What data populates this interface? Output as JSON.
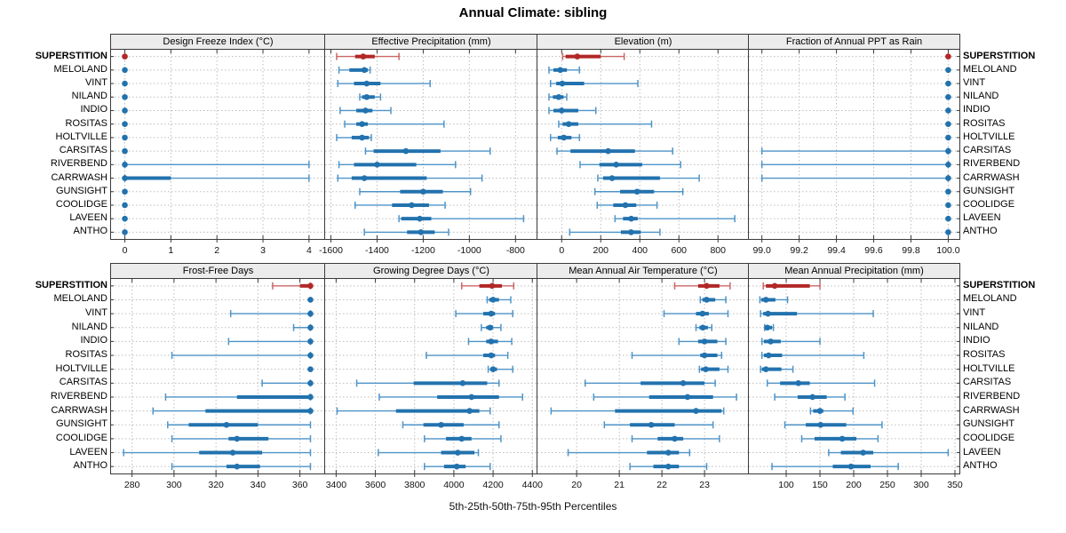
{
  "title": "Annual Climate: sibling",
  "caption": "5th-25th-50th-75th-95th Percentiles",
  "highlight_site": "SUPERSTITION",
  "colors": {
    "normal": "#2272ae",
    "normal_light": "#4e94c8",
    "highlight": "#b22727",
    "highlight_light": "#cc6666",
    "strip_bg": "#ececec",
    "grid": "#bdbdbd",
    "border": "#3a3a3a",
    "tick_text": "#111111"
  },
  "chart_data": {
    "type": "dotplot-percentiles",
    "percentiles": [
      5,
      25,
      50,
      75,
      95
    ],
    "legend_note": "each row shows 5th-25th-50th-75th-95th percentile whisker, box and median dot",
    "categories": [
      "SUPERSTITION",
      "MELOLAND",
      "VINT",
      "NILAND",
      "INDIO",
      "ROSITAS",
      "HOLTVILLE",
      "CARSITAS",
      "RIVERBEND",
      "CARRWASH",
      "GUNSIGHT",
      "COOLIDGE",
      "LAVEEN",
      "ANTHO"
    ],
    "panels": [
      {
        "title": "Design Freeze Index (°C)",
        "row": 0,
        "col": 0,
        "xlim": [
          -0.3,
          4.35
        ],
        "ticks": [
          0,
          1,
          2,
          3,
          4
        ],
        "tick_labels": [
          "0",
          "1",
          "2",
          "3",
          "4"
        ],
        "series": [
          [
            0,
            0,
            0,
            0,
            0
          ],
          [
            0,
            0,
            0,
            0,
            0
          ],
          [
            0,
            0,
            0,
            0,
            0
          ],
          [
            0,
            0,
            0,
            0,
            0
          ],
          [
            0,
            0,
            0,
            0,
            0
          ],
          [
            0,
            0,
            0,
            0,
            0
          ],
          [
            0,
            0,
            0,
            0,
            0
          ],
          [
            0,
            0,
            0,
            0,
            0
          ],
          [
            0,
            0,
            0,
            0,
            4
          ],
          [
            0,
            0,
            0,
            1,
            4
          ],
          [
            0,
            0,
            0,
            0,
            0
          ],
          [
            0,
            0,
            0,
            0,
            0
          ],
          [
            0,
            0,
            0,
            0,
            0
          ],
          [
            0,
            0,
            0,
            0,
            0
          ]
        ]
      },
      {
        "title": "Effective Precipitation (mm)",
        "row": 0,
        "col": 1,
        "xlim": [
          -1625,
          -705
        ],
        "ticks": [
          -1600,
          -1400,
          -1200,
          -1000,
          -800
        ],
        "tick_labels": [
          "-1600",
          "-1400",
          "-1200",
          "-1000",
          "-800"
        ],
        "series": [
          [
            -1575,
            -1495,
            -1460,
            -1410,
            -1305
          ],
          [
            -1565,
            -1520,
            -1455,
            -1440,
            -1430
          ],
          [
            -1570,
            -1500,
            -1445,
            -1385,
            -1170
          ],
          [
            -1475,
            -1465,
            -1445,
            -1410,
            -1385
          ],
          [
            -1560,
            -1490,
            -1450,
            -1420,
            -1340
          ],
          [
            -1540,
            -1490,
            -1465,
            -1440,
            -1110
          ],
          [
            -1575,
            -1510,
            -1465,
            -1435,
            -1425
          ],
          [
            -1450,
            -1415,
            -1275,
            -1125,
            -910
          ],
          [
            -1565,
            -1500,
            -1400,
            -1230,
            -1060
          ],
          [
            -1570,
            -1510,
            -1455,
            -1185,
            -945
          ],
          [
            -1475,
            -1300,
            -1200,
            -1115,
            -995
          ],
          [
            -1495,
            -1335,
            -1250,
            -1175,
            -1105
          ],
          [
            -1305,
            -1295,
            -1215,
            -1165,
            -765
          ],
          [
            -1455,
            -1270,
            -1210,
            -1150,
            -1090
          ]
        ]
      },
      {
        "title": "Elevation (m)",
        "row": 0,
        "col": 2,
        "xlim": [
          -124,
          958
        ],
        "ticks": [
          0,
          200,
          400,
          600,
          800
        ],
        "tick_labels": [
          "0",
          "200",
          "400",
          "600",
          "800"
        ],
        "series": [
          [
            5,
            20,
            80,
            200,
            320
          ],
          [
            -65,
            -42,
            -7,
            27,
            91
          ],
          [
            -57,
            -28,
            3,
            115,
            390
          ],
          [
            -65,
            -45,
            -15,
            10,
            26
          ],
          [
            -65,
            -42,
            0,
            85,
            175
          ],
          [
            -15,
            5,
            36,
            85,
            460
          ],
          [
            -57,
            -20,
            11,
            50,
            91
          ],
          [
            -24,
            45,
            238,
            375,
            568
          ],
          [
            94,
            193,
            279,
            412,
            609
          ],
          [
            185,
            212,
            258,
            503,
            704
          ],
          [
            170,
            299,
            386,
            473,
            620
          ],
          [
            182,
            264,
            326,
            382,
            488
          ],
          [
            273,
            314,
            356,
            389,
            886
          ],
          [
            41,
            303,
            355,
            405,
            503
          ]
        ]
      },
      {
        "title": "Fraction of Annual PPT as Rain",
        "row": 0,
        "col": 3,
        "xlim": [
          98.93,
          100.06
        ],
        "ticks": [
          99.0,
          99.2,
          99.4,
          99.6,
          99.8,
          100.0
        ],
        "tick_labels": [
          "99.0",
          "99.2",
          "99.4",
          "99.6",
          "99.8",
          "100.0"
        ],
        "series": [
          [
            100,
            100,
            100,
            100,
            100
          ],
          [
            100,
            100,
            100,
            100,
            100
          ],
          [
            100,
            100,
            100,
            100,
            100
          ],
          [
            100,
            100,
            100,
            100,
            100
          ],
          [
            100,
            100,
            100,
            100,
            100
          ],
          [
            100,
            100,
            100,
            100,
            100
          ],
          [
            100,
            100,
            100,
            100,
            100
          ],
          [
            99.0,
            100,
            100,
            100,
            100
          ],
          [
            99.0,
            100,
            100,
            100,
            100
          ],
          [
            99.0,
            100,
            100,
            100,
            100
          ],
          [
            100,
            100,
            100,
            100,
            100
          ],
          [
            100,
            100,
            100,
            100,
            100
          ],
          [
            100,
            100,
            100,
            100,
            100
          ],
          [
            100,
            100,
            100,
            100,
            100
          ]
        ]
      },
      {
        "title": "Frost-Free Days",
        "row": 1,
        "col": 0,
        "xlim": [
          270,
          372
        ],
        "ticks": [
          280,
          300,
          320,
          340,
          360
        ],
        "tick_labels": [
          "280",
          "300",
          "320",
          "340",
          "360"
        ],
        "series": [
          [
            347,
            360,
            365,
            365,
            365
          ],
          [
            365,
            365,
            365,
            365,
            365
          ],
          [
            327,
            365,
            365,
            365,
            365
          ],
          [
            357,
            365,
            365,
            365,
            365
          ],
          [
            326,
            365,
            365,
            365,
            365
          ],
          [
            299,
            365,
            365,
            365,
            365
          ],
          [
            365,
            365,
            365,
            365,
            365
          ],
          [
            342,
            365,
            365,
            365,
            365
          ],
          [
            296,
            330,
            365,
            365,
            365
          ],
          [
            290,
            315,
            365,
            365,
            365
          ],
          [
            297,
            307,
            325,
            340,
            365
          ],
          [
            299,
            326,
            330,
            345,
            365
          ],
          [
            276,
            312,
            328,
            342,
            365
          ],
          [
            299,
            325,
            330,
            341,
            365
          ]
        ]
      },
      {
        "title": "Growing Degree Days (°C)",
        "row": 1,
        "col": 1,
        "xlim": [
          3344,
          4426
        ],
        "ticks": [
          3400,
          3600,
          3800,
          4000,
          4200,
          4400
        ],
        "tick_labels": [
          "3400",
          "3600",
          "3800",
          "4000",
          "4200",
          "4400"
        ],
        "series": [
          [
            4040,
            4130,
            4195,
            4245,
            4305
          ],
          [
            4170,
            4180,
            4200,
            4230,
            4290
          ],
          [
            4010,
            4150,
            4190,
            4210,
            4300
          ],
          [
            4140,
            4165,
            4185,
            4200,
            4240
          ],
          [
            4075,
            4165,
            4190,
            4225,
            4295
          ],
          [
            3860,
            4150,
            4190,
            4210,
            4275
          ],
          [
            4175,
            4185,
            4200,
            4220,
            4300
          ],
          [
            3505,
            3795,
            4045,
            4170,
            4230
          ],
          [
            3620,
            3915,
            4090,
            4230,
            4350
          ],
          [
            3405,
            3705,
            4080,
            4130,
            4185
          ],
          [
            3740,
            3845,
            3935,
            4050,
            4230
          ],
          [
            3850,
            3960,
            4040,
            4090,
            4240
          ],
          [
            3615,
            3935,
            4020,
            4105,
            4125
          ],
          [
            3850,
            3950,
            4015,
            4060,
            4185
          ]
        ]
      },
      {
        "title": "Mean Annual Air Temperature (°C)",
        "row": 1,
        "col": 2,
        "xlim": [
          19.08,
          24.04
        ],
        "ticks": [
          20,
          21,
          22,
          23
        ],
        "tick_labels": [
          "20",
          "21",
          "22",
          "23"
        ],
        "series": [
          [
            22.3,
            22.85,
            23.05,
            23.35,
            23.6
          ],
          [
            22.9,
            22.95,
            23.05,
            23.25,
            23.5
          ],
          [
            22.05,
            22.8,
            22.95,
            23.1,
            23.55
          ],
          [
            22.8,
            22.88,
            22.96,
            23.08,
            23.17
          ],
          [
            22.4,
            22.85,
            23.0,
            23.3,
            23.5
          ],
          [
            21.3,
            22.9,
            23.0,
            23.3,
            23.4
          ],
          [
            22.88,
            22.92,
            23.03,
            23.35,
            23.55
          ],
          [
            20.2,
            21.5,
            22.5,
            23.0,
            23.25
          ],
          [
            20.4,
            21.7,
            22.6,
            23.2,
            23.75
          ],
          [
            19.4,
            20.9,
            22.8,
            23.4,
            23.45
          ],
          [
            20.65,
            21.25,
            21.75,
            22.3,
            23.2
          ],
          [
            21.3,
            21.9,
            22.3,
            22.5,
            23.35
          ],
          [
            19.8,
            21.65,
            22.15,
            22.4,
            22.65
          ],
          [
            21.25,
            21.8,
            22.15,
            22.4,
            23.05
          ]
        ]
      },
      {
        "title": "Mean Annual Precipitation (mm)",
        "row": 1,
        "col": 3,
        "xlim": [
          44.7,
          356.6
        ],
        "ticks": [
          100,
          150,
          200,
          250,
          300,
          350
        ],
        "tick_labels": [
          "100",
          "150",
          "200",
          "250",
          "300",
          "350"
        ],
        "series": [
          [
            66,
            70,
            83,
            135,
            150
          ],
          [
            61,
            63,
            70,
            84,
            102
          ],
          [
            62,
            66,
            73,
            116,
            229
          ],
          [
            68,
            69,
            72,
            79,
            81
          ],
          [
            64,
            67,
            77,
            92,
            150
          ],
          [
            64,
            67,
            74,
            94,
            215
          ],
          [
            62,
            64,
            70,
            93,
            110
          ],
          [
            72,
            91,
            118,
            135,
            231
          ],
          [
            83,
            117,
            139,
            160,
            187
          ],
          [
            136,
            140,
            150,
            155,
            199
          ],
          [
            98,
            129,
            151,
            189,
            242
          ],
          [
            123,
            142,
            183,
            204,
            236
          ],
          [
            163,
            181,
            214,
            229,
            340
          ],
          [
            79,
            169,
            196,
            225,
            266
          ]
        ]
      }
    ]
  }
}
